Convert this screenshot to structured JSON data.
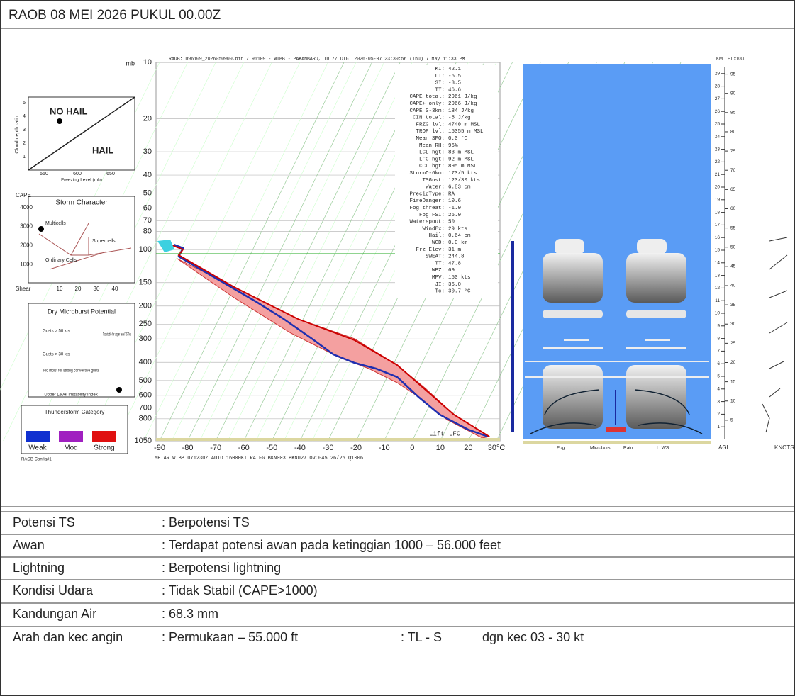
{
  "header": {
    "title": "RAOB 08 MEI  2026 PUKUL  00.00Z"
  },
  "sounding": {
    "header_line": "RAOB:  D96109_2026050900.bin / 96109 - WIBB - PAKANBARU, ID // DTG: 2026-05-07 23:30:56 (Thu) 7 May 11:33 PM",
    "pressure_unit": "mb",
    "pressure_ticks": [
      10,
      20,
      30,
      40,
      50,
      60,
      70,
      80,
      100,
      150,
      200,
      250,
      300,
      400,
      500,
      600,
      700,
      800,
      1050
    ],
    "plim": [
      10,
      1050
    ],
    "temperature_ticks": [
      -90,
      -80,
      -70,
      -60,
      -50,
      -40,
      -30,
      -20,
      -10,
      0,
      10,
      20,
      {
        "value": 30,
        "label": "30°C"
      }
    ],
    "metar": "METAR WIBB 071230Z AUTO 16000KT RA FG BKN003 BKN027 OVC045 26/25 Q1006",
    "lift_labels": [
      "Lift",
      "LFC"
    ],
    "indices": [
      {
        "name": "KI:",
        "value": "42.1"
      },
      {
        "name": "LI:",
        "value": "-6.5"
      },
      {
        "name": "SI:",
        "value": "-3.5"
      },
      {
        "name": "TT:",
        "value": "46.6"
      },
      {
        "name": "CAPE total:",
        "value": "2961 J/kg"
      },
      {
        "name": "CAPE+ only:",
        "value": "2966 J/kg"
      },
      {
        "name": "CAPE 0-3km:",
        "value": "184 J/kg"
      },
      {
        "name": "CIN total:",
        "value": "-5 J/kg"
      },
      {
        "name": "FRZG lvl:",
        "value": "4740 m MSL"
      },
      {
        "name": "TROP lvl:",
        "value": "15355 m MSL"
      },
      {
        "name": "Mean SFO:",
        "value": "0.0 °C"
      },
      {
        "name": "Mean RH:",
        "value": "96%"
      },
      {
        "name": "LCL hgt:",
        "value": "83 m MSL"
      },
      {
        "name": "LFC hgt:",
        "value": "92 m MSL"
      },
      {
        "name": "CCL hgt:",
        "value": "895 m MSL"
      },
      {
        "name": "StormD-6km:",
        "value": "173/5 kts"
      },
      {
        "name": "TSGust:",
        "value": "123/30 kts"
      },
      {
        "name": "Water:",
        "value": "6.83 cm"
      },
      {
        "name": "PrecipType:",
        "value": "RA"
      },
      {
        "name": "FireDanger:",
        "value": "10.6"
      },
      {
        "name": "Fog threat:",
        "value": "-1.0"
      },
      {
        "name": "Fog FSI:",
        "value": "26.0"
      },
      {
        "name": "Waterspout:",
        "value": "50"
      },
      {
        "name": "WindEx:",
        "value": "29 kts"
      },
      {
        "name": "Hail:",
        "value": "0.64 cm"
      },
      {
        "name": "WCD:",
        "value": "0.0 km"
      },
      {
        "name": "Frz Elev:",
        "value": "31 m"
      },
      {
        "name": "SWEAT:",
        "value": "244.8"
      },
      {
        "name": "TT:",
        "value": "47.8"
      },
      {
        "name": "WBZ:",
        "value": "69"
      },
      {
        "name": "MPV:",
        "value": "150 kts"
      },
      {
        "name": "JI:",
        "value": "36.0"
      },
      {
        "name": "Tc:",
        "value": "30.7 °C"
      }
    ],
    "km_label": "KM",
    "ft_label": "FT x1000",
    "km_ticks": [
      1,
      2,
      3,
      4,
      5,
      6,
      7,
      8,
      9,
      10,
      11,
      12,
      13,
      14,
      15,
      16,
      17,
      18,
      19,
      20,
      21,
      22,
      23,
      24,
      25,
      26,
      27,
      28,
      29
    ],
    "ft_ticks": [
      5,
      10,
      15,
      20,
      25,
      30,
      35,
      40,
      45,
      50,
      55,
      60,
      65,
      70,
      75,
      80,
      85,
      90,
      95
    ],
    "agl": "AGL",
    "knots": "KNOTS",
    "legend": [
      "Fog",
      "Microburst",
      "Rain",
      "LLWS"
    ]
  },
  "hail_panel": {
    "no_hail": "NO HAIL",
    "hail": "HAIL",
    "y_label": "Cloud depth ratio",
    "x_label": "Freezing Level (mb)",
    "yticks": [
      1,
      2,
      3,
      4,
      5
    ],
    "xticks": [
      550,
      600,
      650
    ]
  },
  "storm_panel": {
    "title": "Storm Character",
    "y_label": "CAPE",
    "x_label": "Shear",
    "multicells": "Multicells",
    "supercells": "Supercells",
    "ordinary": "Ordinary Cells",
    "yticks": [
      1000,
      2000,
      3000,
      4000
    ],
    "xticks": [
      10,
      20,
      30,
      40
    ]
  },
  "microburst_panel": {
    "title": "Dry Microburst Potential",
    "gusts50": "Gusts > 50 kts",
    "gusts30": "Gusts > 30 kts",
    "too_stable": "Too stable for upper level TSTMs",
    "too_moist": "Too moist for strong convective gusts",
    "x_label": "Upper Level Instability Index"
  },
  "ts_panel": {
    "title": "Thunderstorm Category",
    "weak": "Weak",
    "mod": "Mod",
    "strong": "Strong",
    "config": "RAOB Config#1"
  },
  "table": {
    "rows": [
      [
        {
          "label": "Potensi  TS"
        },
        {
          "text": ": Berpotensi TS"
        }
      ],
      [
        {
          "label": "Awan"
        },
        {
          "text": ": Terdapat potensi awan pada ketinggian 1000 – 56.000 feet"
        }
      ],
      [
        {
          "label": "Lightning"
        },
        {
          "text": ": Berpotensi   lightning"
        }
      ],
      [
        {
          "label": "Kondisi Udara"
        },
        {
          "text": ": Tidak Stabil (CAPE>1000)"
        }
      ],
      [
        {
          "label": "Kandungan Air"
        },
        {
          "text": ": 68.3 mm"
        }
      ],
      [
        {
          "label": "Arah dan kec angin"
        },
        {
          "text": ": Permukaan –  55.000 ft"
        },
        {
          "text": ": TL - S"
        },
        {
          "text": "dgn kec  03  - 30 kt"
        }
      ]
    ]
  }
}
